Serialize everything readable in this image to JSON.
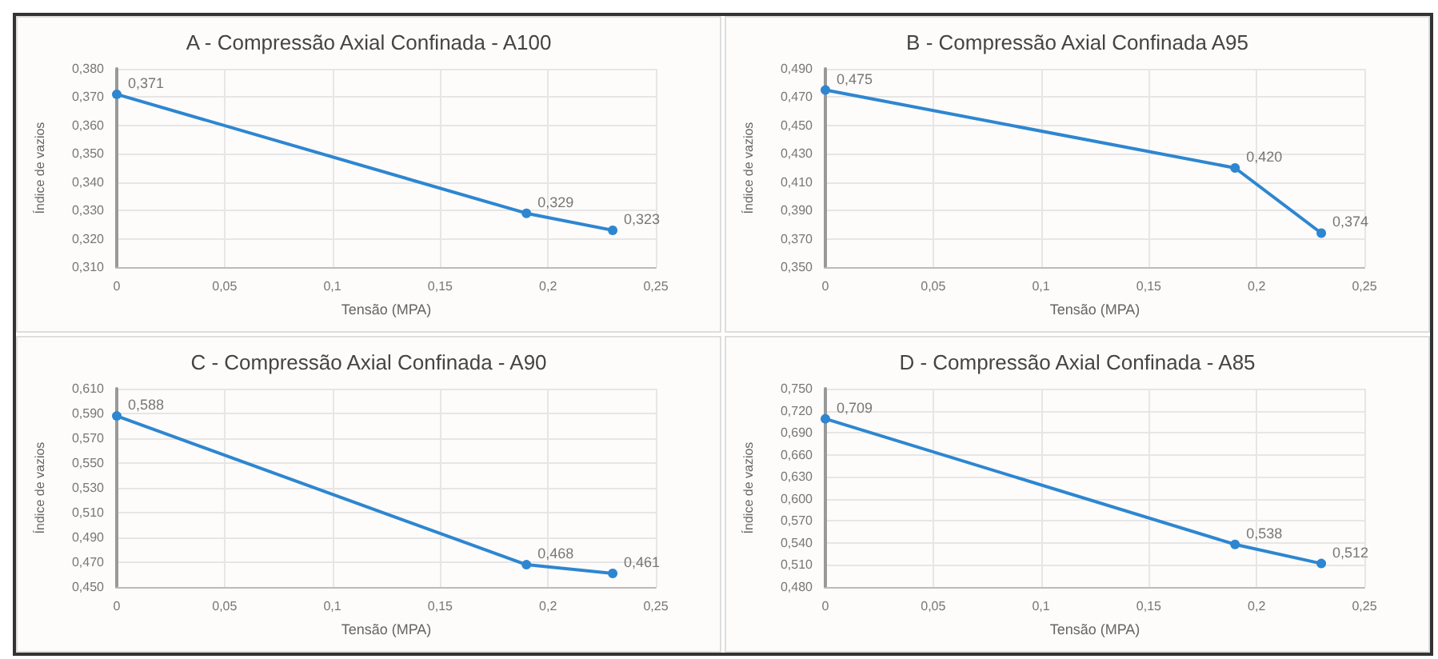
{
  "chart_data": [
    {
      "type": "line",
      "title": "A - Compressão Axial Confinada - A100",
      "xlabel": "Tensão (MPA)",
      "ylabel": "Índice de vazios",
      "x": [
        0,
        0.19,
        0.23
      ],
      "series": [
        {
          "color": "#2e86d1",
          "values": [
            0.371,
            0.329,
            0.323
          ],
          "value_labels": [
            "0,371",
            "0,329",
            "0,323"
          ]
        }
      ],
      "xlim": [
        0,
        0.25
      ],
      "xticks": [
        {
          "value": 0,
          "label": "0"
        },
        {
          "value": 0.05,
          "label": "0,05"
        },
        {
          "value": 0.1,
          "label": "0,1"
        },
        {
          "value": 0.15,
          "label": "0,15"
        },
        {
          "value": 0.2,
          "label": "0,2"
        },
        {
          "value": 0.25,
          "label": "0,25"
        }
      ],
      "ylim": [
        0.31,
        0.38
      ],
      "yticks": [
        {
          "value": 0.31,
          "label": "0,310"
        },
        {
          "value": 0.32,
          "label": "0,320"
        },
        {
          "value": 0.33,
          "label": "0,330"
        },
        {
          "value": 0.34,
          "label": "0,340"
        },
        {
          "value": 0.35,
          "label": "0,350"
        },
        {
          "value": 0.36,
          "label": "0,360"
        },
        {
          "value": 0.37,
          "label": "0,370"
        },
        {
          "value": 0.38,
          "label": "0,380"
        }
      ],
      "grid": true,
      "marker": "circle",
      "line_style": "solid"
    },
    {
      "type": "line",
      "title": "B - Compressão Axial Confinada A95",
      "xlabel": "Tensão (MPA)",
      "ylabel": "Índice de vazios",
      "x": [
        0,
        0.19,
        0.23
      ],
      "series": [
        {
          "color": "#2e86d1",
          "values": [
            0.475,
            0.42,
            0.374
          ],
          "value_labels": [
            "0,475",
            "0,420",
            "0,374"
          ]
        }
      ],
      "xlim": [
        0,
        0.25
      ],
      "xticks": [
        {
          "value": 0,
          "label": "0"
        },
        {
          "value": 0.05,
          "label": "0,05"
        },
        {
          "value": 0.1,
          "label": "0,1"
        },
        {
          "value": 0.15,
          "label": "0,15"
        },
        {
          "value": 0.2,
          "label": "0,2"
        },
        {
          "value": 0.25,
          "label": "0,25"
        }
      ],
      "ylim": [
        0.35,
        0.49
      ],
      "yticks": [
        {
          "value": 0.35,
          "label": "0,350"
        },
        {
          "value": 0.37,
          "label": "0,370"
        },
        {
          "value": 0.39,
          "label": "0,390"
        },
        {
          "value": 0.41,
          "label": "0,410"
        },
        {
          "value": 0.43,
          "label": "0,430"
        },
        {
          "value": 0.45,
          "label": "0,450"
        },
        {
          "value": 0.47,
          "label": "0,470"
        },
        {
          "value": 0.49,
          "label": "0,490"
        }
      ],
      "grid": true,
      "marker": "circle",
      "line_style": "solid"
    },
    {
      "type": "line",
      "title": "C - Compressão Axial Confinada - A90",
      "xlabel": "Tensão (MPA)",
      "ylabel": "Índice de vazios",
      "x": [
        0,
        0.19,
        0.23
      ],
      "series": [
        {
          "color": "#2e86d1",
          "values": [
            0.588,
            0.468,
            0.461
          ],
          "value_labels": [
            "0,588",
            "0,468",
            "0,461"
          ]
        }
      ],
      "xlim": [
        0,
        0.25
      ],
      "xticks": [
        {
          "value": 0,
          "label": "0"
        },
        {
          "value": 0.05,
          "label": "0,05"
        },
        {
          "value": 0.1,
          "label": "0,1"
        },
        {
          "value": 0.15,
          "label": "0,15"
        },
        {
          "value": 0.2,
          "label": "0,2"
        },
        {
          "value": 0.25,
          "label": "0,25"
        }
      ],
      "ylim": [
        0.45,
        0.61
      ],
      "yticks": [
        {
          "value": 0.45,
          "label": "0,450"
        },
        {
          "value": 0.47,
          "label": "0,470"
        },
        {
          "value": 0.49,
          "label": "0,490"
        },
        {
          "value": 0.51,
          "label": "0,510"
        },
        {
          "value": 0.53,
          "label": "0,530"
        },
        {
          "value": 0.55,
          "label": "0,550"
        },
        {
          "value": 0.57,
          "label": "0,570"
        },
        {
          "value": 0.59,
          "label": "0,590"
        },
        {
          "value": 0.61,
          "label": "0,610"
        }
      ],
      "grid": true,
      "marker": "circle",
      "line_style": "solid"
    },
    {
      "type": "line",
      "title": "D - Compressão Axial Confinada - A85",
      "xlabel": "Tensão (MPA)",
      "ylabel": "Índice de vazios",
      "x": [
        0,
        0.19,
        0.23
      ],
      "series": [
        {
          "color": "#2e86d1",
          "values": [
            0.709,
            0.538,
            0.512
          ],
          "value_labels": [
            "0,709",
            "0,538",
            "0,512"
          ]
        }
      ],
      "xlim": [
        0,
        0.25
      ],
      "xticks": [
        {
          "value": 0,
          "label": "0"
        },
        {
          "value": 0.05,
          "label": "0,05"
        },
        {
          "value": 0.1,
          "label": "0,1"
        },
        {
          "value": 0.15,
          "label": "0,15"
        },
        {
          "value": 0.2,
          "label": "0,2"
        },
        {
          "value": 0.25,
          "label": "0,25"
        }
      ],
      "ylim": [
        0.48,
        0.75
      ],
      "yticks": [
        {
          "value": 0.48,
          "label": "0,480"
        },
        {
          "value": 0.51,
          "label": "0,510"
        },
        {
          "value": 0.54,
          "label": "0,540"
        },
        {
          "value": 0.57,
          "label": "0,570"
        },
        {
          "value": 0.6,
          "label": "0,600"
        },
        {
          "value": 0.63,
          "label": "0,630"
        },
        {
          "value": 0.66,
          "label": "0,660"
        },
        {
          "value": 0.69,
          "label": "0,690"
        },
        {
          "value": 0.72,
          "label": "0,720"
        },
        {
          "value": 0.75,
          "label": "0,750"
        }
      ],
      "grid": true,
      "marker": "circle",
      "line_style": "solid"
    }
  ]
}
